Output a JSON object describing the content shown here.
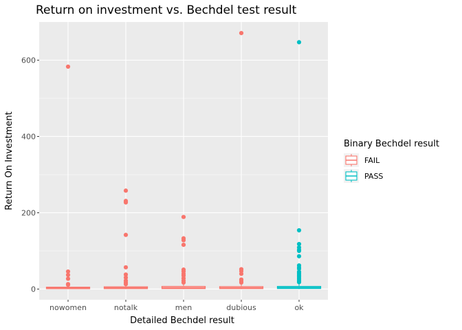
{
  "chart_data": {
    "type": "boxplot",
    "title": "Return on investment vs. Bechdel test result",
    "xlabel": "Detailed Bechdel result",
    "ylabel": "Return On Investment",
    "categories": [
      "nowomen",
      "notalk",
      "men",
      "dubious",
      "ok"
    ],
    "ylim": [
      -28,
      700
    ],
    "yticks": [
      0,
      200,
      400,
      600
    ],
    "grid": true,
    "legend": {
      "title": "Binary Bechdel result",
      "position": "right",
      "entries": [
        {
          "label": "FAIL",
          "color": "#F8766D"
        },
        {
          "label": "PASS",
          "color": "#00BFC4"
        }
      ]
    },
    "boxes": [
      {
        "category": "nowomen",
        "group": "FAIL",
        "min": 0,
        "q1": 1,
        "median": 2.5,
        "q3": 5,
        "max": 10,
        "outliers": [
          583,
          46,
          37,
          27,
          13,
          11
        ]
      },
      {
        "category": "notalk",
        "group": "FAIL",
        "min": 0,
        "q1": 1.2,
        "median": 3,
        "q3": 6,
        "max": 12,
        "outliers": [
          258,
          231,
          227,
          142,
          57,
          38,
          30,
          22,
          17,
          13
        ]
      },
      {
        "category": "men",
        "group": "FAIL",
        "min": 0,
        "q1": 1.3,
        "median": 3.2,
        "q3": 7,
        "max": 14,
        "outliers": [
          189,
          133,
          128,
          116,
          51,
          46,
          40,
          35,
          28,
          22,
          17
        ]
      },
      {
        "category": "dubious",
        "group": "FAIL",
        "min": 0,
        "q1": 1.3,
        "median": 3,
        "q3": 6.5,
        "max": 13,
        "outliers": [
          671,
          52,
          47,
          40,
          25,
          21,
          17
        ]
      },
      {
        "category": "ok",
        "group": "PASS",
        "min": 0,
        "q1": 1.5,
        "median": 3.5,
        "q3": 7,
        "max": 15,
        "outliers": [
          647,
          154,
          118,
          109,
          103,
          100,
          86,
          62,
          57,
          53,
          45,
          42,
          38,
          34,
          30,
          26,
          22,
          18
        ]
      }
    ]
  },
  "colors": {
    "panel_bg": "#EBEBEB",
    "grid_major": "#FFFFFF",
    "tick_mark": "#333333",
    "fail": "#F8766D",
    "pass": "#00BFC4"
  }
}
